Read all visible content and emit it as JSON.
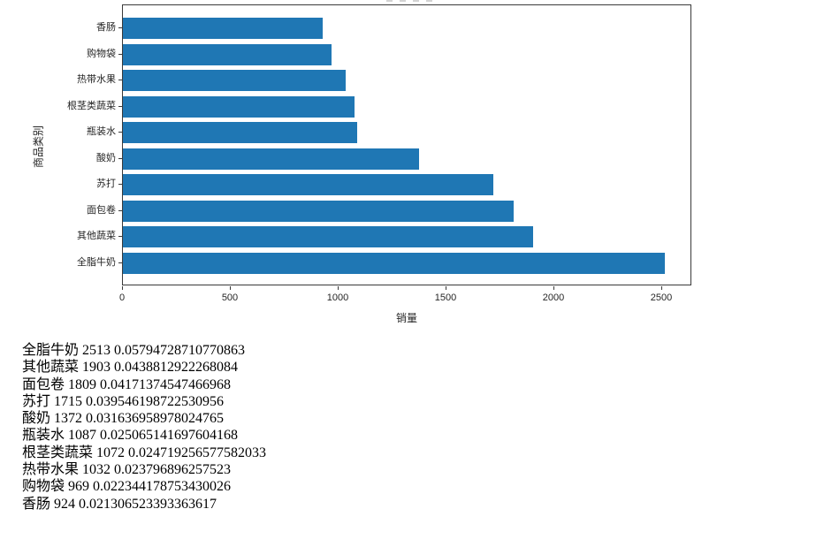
{
  "chart_data": {
    "type": "bar",
    "orientation": "horizontal",
    "xlabel": "销量",
    "ylabel": "商品类别",
    "xlim": [
      0,
      2638.65
    ],
    "x_ticks": [
      0,
      500,
      1000,
      1500,
      2000,
      2500
    ],
    "grid": false,
    "legend": false,
    "bar_color": "#1f77b4",
    "categories_top_to_bottom": [
      "香肠",
      "购物袋",
      "热带水果",
      "根茎类蔬菜",
      "瓶装水",
      "酸奶",
      "苏打",
      "面包卷",
      "其他蔬菜",
      "全脂牛奶"
    ],
    "values_top_to_bottom": [
      924,
      969,
      1032,
      1072,
      1087,
      1372,
      1715,
      1809,
      1903,
      2513
    ]
  },
  "console_output": {
    "lines": [
      {
        "label": "全脂牛奶",
        "count": "2513",
        "share": "0.05794728710770863"
      },
      {
        "label": "其他蔬菜",
        "count": "1903",
        "share": "0.0438812922268084"
      },
      {
        "label": "面包卷",
        "count": "1809",
        "share": "0.04171374547466968"
      },
      {
        "label": "苏打",
        "count": "1715",
        "share": "0.039546198722530956"
      },
      {
        "label": "酸奶",
        "count": "1372",
        "share": "0.031636958978024765"
      },
      {
        "label": "瓶装水",
        "count": "1087",
        "share": "0.025065141697604168"
      },
      {
        "label": "根茎类蔬菜",
        "count": "1072",
        "share": "0.024719256577582033"
      },
      {
        "label": "热带水果",
        "count": "1032",
        "share": "0.023796896257523"
      },
      {
        "label": "购物袋",
        "count": "969",
        "share": "0.022344178753430026"
      },
      {
        "label": "香肠",
        "count": "924",
        "share": "0.021306523393363617"
      }
    ]
  }
}
